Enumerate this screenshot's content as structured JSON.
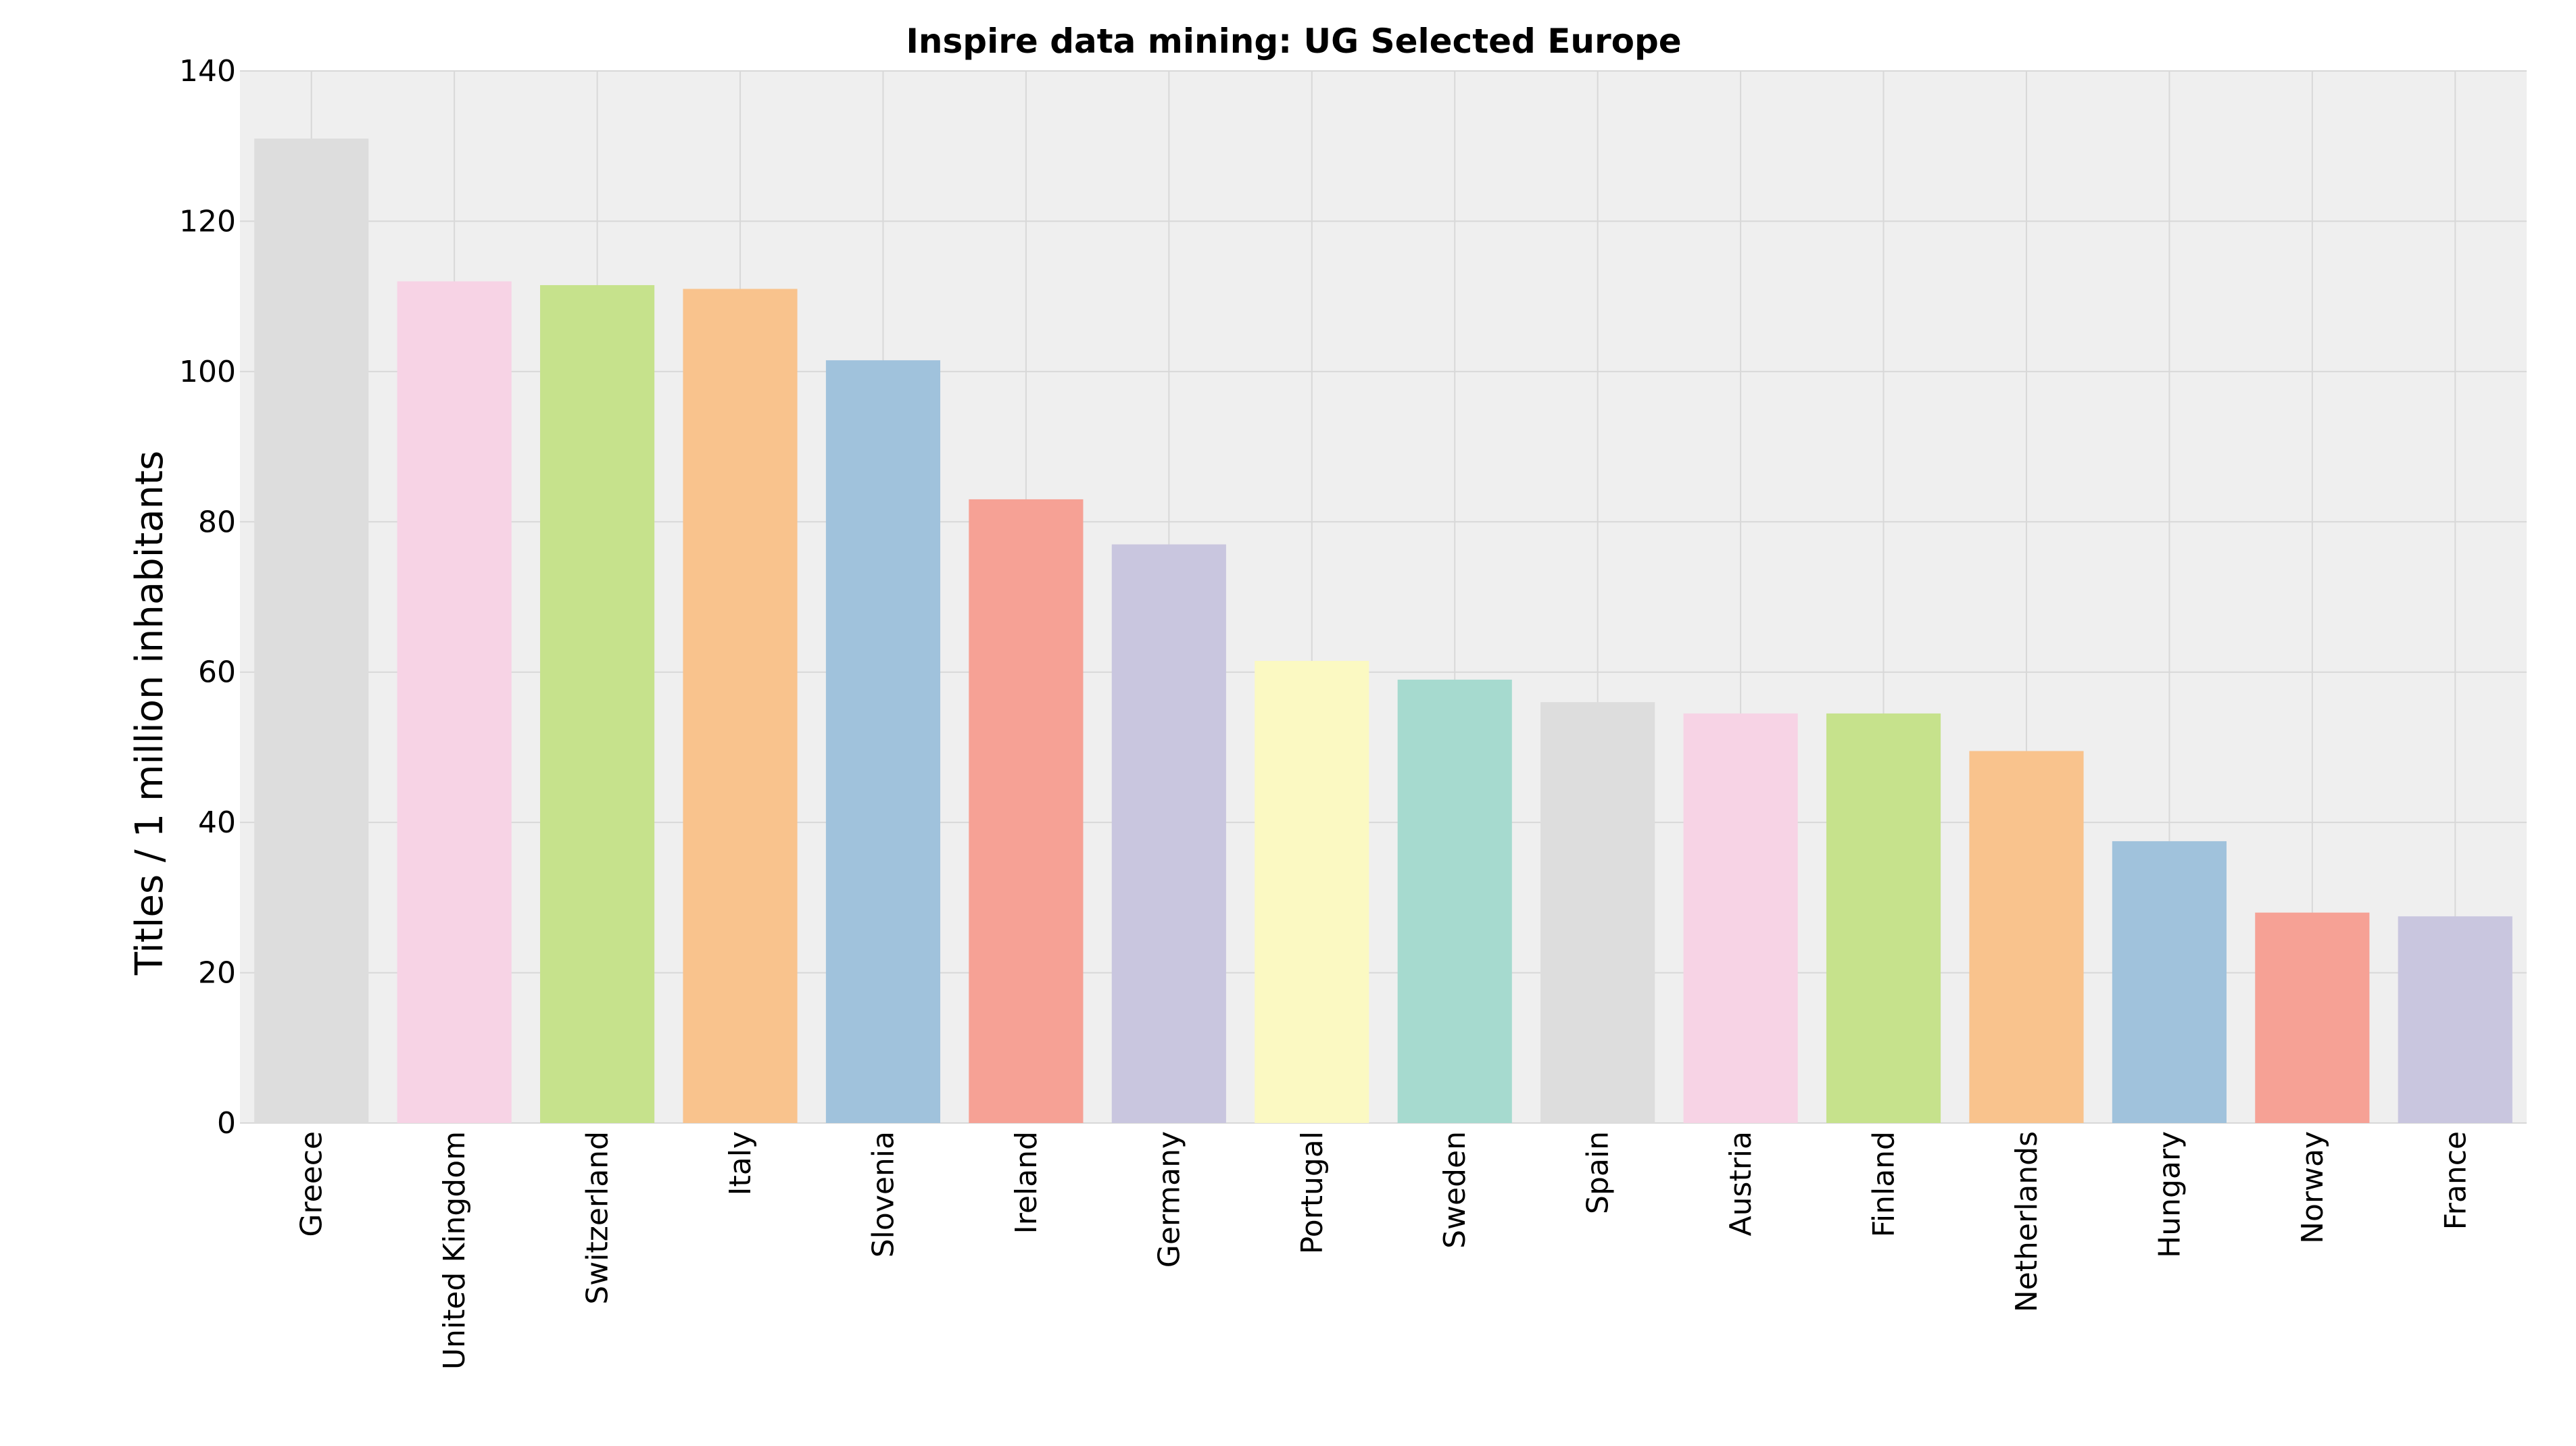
{
  "chart_data": {
    "type": "bar",
    "title": "Inspire data mining: UG Selected Europe",
    "xlabel": "",
    "ylabel": "Titles / 1 million inhabitants",
    "ylim": [
      0,
      140
    ],
    "yticks": [
      0,
      20,
      40,
      60,
      80,
      100,
      120,
      140
    ],
    "grid": true,
    "categories": [
      "Greece",
      "United Kingdom",
      "Switzerland",
      "Italy",
      "Slovenia",
      "Ireland",
      "Germany",
      "Portugal",
      "Sweden",
      "Spain",
      "Austria",
      "Finland",
      "Netherlands",
      "Hungary",
      "Norway",
      "France"
    ],
    "values": [
      131,
      112,
      111.5,
      111,
      101.5,
      83,
      77,
      61.5,
      59,
      56,
      54.5,
      54.5,
      49.5,
      37.5,
      28,
      27.5
    ],
    "colors": [
      "#dddddd",
      "#f7d3e5",
      "#c6e28c",
      "#f9c38d",
      "#a0c2dc",
      "#f6a195",
      "#c9c6df",
      "#fbf9c2",
      "#a6dacf",
      "#dddddd",
      "#f7d3e5",
      "#c6e28c",
      "#f9c38d",
      "#a0c2dc",
      "#f6a195",
      "#c9c6df"
    ],
    "plot_background": "#efefef",
    "grid_color": "#d8d8d8"
  }
}
